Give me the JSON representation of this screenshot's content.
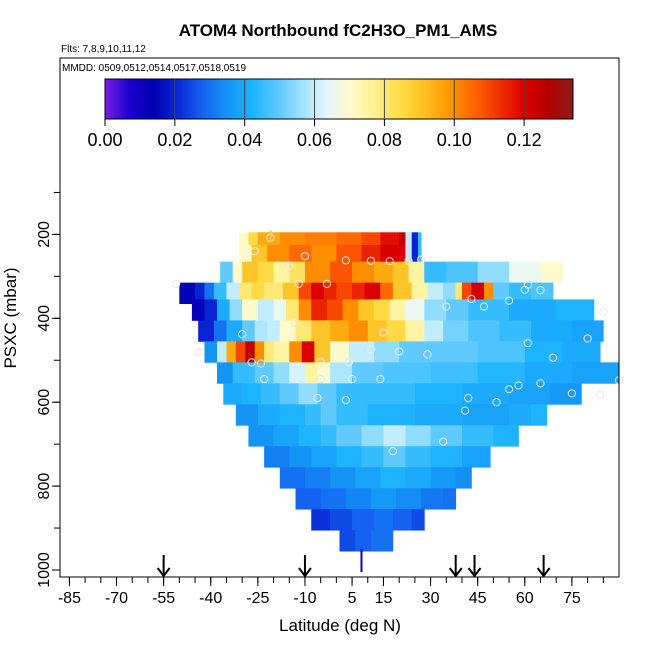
{
  "chart_data": {
    "type": "heatmap",
    "title": "ATOM4 Northbound fC2H3O_PM1_AMS",
    "flights_note": "Flts: 7,8,9,10,11,12",
    "dates_note": "MMDD: 0509,0512,0514,0517,0518,0519",
    "xlabel": "Latitude (deg N)",
    "ylabel": "PSXC (mbar)",
    "xlim": [
      -88,
      90
    ],
    "ylim": [
      1010,
      0
    ],
    "x_ticks": [
      "-85",
      "-70",
      "-55",
      "-40",
      "-25",
      "-10",
      "5",
      "15",
      "30",
      "45",
      "60",
      "75"
    ],
    "x_tick_values": [
      -85,
      -70,
      -55,
      -40,
      -25,
      -10,
      5,
      15,
      30,
      45,
      60,
      75
    ],
    "y_ticks": [
      "200",
      "400",
      "600",
      "800",
      "1000"
    ],
    "y_tick_values": [
      200,
      400,
      600,
      800,
      1000
    ],
    "colorbar": {
      "min": 0,
      "max": 0.134,
      "ticks": [
        "0.00",
        "0.02",
        "0.04",
        "0.06",
        "0.08",
        "0.10",
        "0.12"
      ],
      "tick_values": [
        0,
        0.02,
        0.04,
        0.06,
        0.08,
        0.1,
        0.12
      ],
      "colors": [
        "#7a1ee6",
        "#1a00d0",
        "#0000b0",
        "#0a2ad8",
        "#1464f0",
        "#1496f5",
        "#1eb4ff",
        "#5ac8ff",
        "#9ee2ff",
        "#e4f6ff",
        "#fffac8",
        "#fff08c",
        "#ffdc46",
        "#ffbe1e",
        "#ff9600",
        "#ff6400",
        "#f03200",
        "#dc0000",
        "#b40000",
        "#8c1c1c"
      ]
    },
    "rows": [
      {
        "p": 220,
        "lat0": -31,
        "lat1": 27,
        "segments": [
          [
            -31,
            0.07
          ],
          [
            -28,
            0.085
          ],
          [
            -25,
            0.095
          ],
          [
            -18,
            0.1
          ],
          [
            -10,
            0.102
          ],
          [
            0,
            0.105
          ],
          [
            8,
            0.11
          ],
          [
            14,
            0.118
          ],
          [
            20,
            0.125
          ],
          [
            22,
            0.06
          ],
          [
            24,
            0.02
          ],
          [
            26,
            0.045
          ]
        ]
      },
      {
        "p": 250,
        "lat0": -31,
        "lat1": 27,
        "segments": [
          [
            -31,
            0.07
          ],
          [
            -27,
            0.09
          ],
          [
            -22,
            0.1
          ],
          [
            -15,
            0.105
          ],
          [
            -8,
            0.1
          ],
          [
            0,
            0.108
          ],
          [
            8,
            0.115
          ],
          [
            14,
            0.12
          ],
          [
            20,
            0.12
          ],
          [
            22,
            0.06
          ],
          [
            24,
            0.02
          ],
          [
            26,
            0.045
          ]
        ]
      },
      {
        "p": 290,
        "lat0": -37,
        "lat1": 72,
        "segments": [
          [
            -37,
            0.05
          ],
          [
            -33,
            0.07
          ],
          [
            -30,
            0.09
          ],
          [
            -25,
            0.085
          ],
          [
            -20,
            0.075
          ],
          [
            -15,
            0.082
          ],
          [
            -10,
            0.1
          ],
          [
            -2,
            0.108
          ],
          [
            5,
            0.1
          ],
          [
            12,
            0.095
          ],
          [
            18,
            0.09
          ],
          [
            23,
            0.075
          ],
          [
            28,
            0.045
          ],
          [
            35,
            0.048
          ],
          [
            45,
            0.055
          ],
          [
            55,
            0.065
          ],
          [
            65,
            0.07
          ]
        ]
      },
      {
        "p": 340,
        "lat0": -50,
        "lat1": 69,
        "segments": [
          [
            -50,
            0.015
          ],
          [
            -45,
            0.02
          ],
          [
            -42,
            0.03
          ],
          [
            -39,
            0.045
          ],
          [
            -35,
            0.06
          ],
          [
            -31,
            0.08
          ],
          [
            -27,
            0.085
          ],
          [
            -23,
            0.08
          ],
          [
            -17,
            0.09
          ],
          [
            -12,
            0.11
          ],
          [
            -8,
            0.12
          ],
          [
            -4,
            0.115
          ],
          [
            0,
            0.11
          ],
          [
            5,
            0.115
          ],
          [
            9,
            0.12
          ],
          [
            14,
            0.105
          ],
          [
            18,
            0.09
          ],
          [
            24,
            0.075
          ],
          [
            29,
            0.06
          ],
          [
            34,
            0.055
          ],
          [
            38,
            0.08
          ],
          [
            40,
            0.11
          ],
          [
            43,
            0.122
          ],
          [
            47,
            0.1
          ],
          [
            50,
            0.05
          ],
          [
            55,
            0.045
          ],
          [
            62,
            0.048
          ]
        ]
      },
      {
        "p": 380,
        "lat0": -46,
        "lat1": 82,
        "segments": [
          [
            -46,
            0.012
          ],
          [
            -42,
            0.02
          ],
          [
            -38,
            0.04
          ],
          [
            -34,
            0.055
          ],
          [
            -30,
            0.07
          ],
          [
            -25,
            0.06
          ],
          [
            -20,
            0.065
          ],
          [
            -16,
            0.08
          ],
          [
            -12,
            0.1
          ],
          [
            -8,
            0.115
          ],
          [
            -3,
            0.11
          ],
          [
            2,
            0.1
          ],
          [
            7,
            0.09
          ],
          [
            12,
            0.085
          ],
          [
            17,
            0.075
          ],
          [
            22,
            0.065
          ],
          [
            28,
            0.055
          ],
          [
            35,
            0.05
          ],
          [
            42,
            0.045
          ],
          [
            55,
            0.04
          ],
          [
            70,
            0.042
          ]
        ]
      },
      {
        "p": 430,
        "lat0": -44,
        "lat1": 85,
        "segments": [
          [
            -44,
            0.02
          ],
          [
            -39,
            0.03
          ],
          [
            -35,
            0.04
          ],
          [
            -30,
            0.05
          ],
          [
            -26,
            0.058
          ],
          [
            -22,
            0.06
          ],
          [
            -18,
            0.07
          ],
          [
            -13,
            0.08
          ],
          [
            -8,
            0.09
          ],
          [
            -2,
            0.095
          ],
          [
            4,
            0.1
          ],
          [
            10,
            0.09
          ],
          [
            16,
            0.085
          ],
          [
            22,
            0.075
          ],
          [
            28,
            0.06
          ],
          [
            34,
            0.052
          ],
          [
            42,
            0.048
          ],
          [
            52,
            0.045
          ],
          [
            62,
            0.04
          ],
          [
            75,
            0.038
          ]
        ]
      },
      {
        "p": 480,
        "lat0": -42,
        "lat1": 84,
        "segments": [
          [
            -42,
            0.035
          ],
          [
            -38,
            0.06
          ],
          [
            -35,
            0.095
          ],
          [
            -32,
            0.11
          ],
          [
            -29,
            0.125
          ],
          [
            -26,
            0.1
          ],
          [
            -23,
            0.08
          ],
          [
            -20,
            0.075
          ],
          [
            -15,
            0.1
          ],
          [
            -11,
            0.12
          ],
          [
            -7,
            0.09
          ],
          [
            -2,
            0.07
          ],
          [
            4,
            0.06
          ],
          [
            12,
            0.055
          ],
          [
            20,
            0.05
          ],
          [
            30,
            0.05
          ],
          [
            45,
            0.048
          ],
          [
            60,
            0.042
          ],
          [
            72,
            0.04
          ]
        ]
      },
      {
        "p": 530,
        "lat0": -38,
        "lat1": 90,
        "segments": [
          [
            -38,
            0.035
          ],
          [
            -33,
            0.045
          ],
          [
            -26,
            0.05
          ],
          [
            -20,
            0.055
          ],
          [
            -15,
            0.062
          ],
          [
            -10,
            0.075
          ],
          [
            -6,
            0.07
          ],
          [
            -2,
            0.058
          ],
          [
            5,
            0.05
          ],
          [
            15,
            0.048
          ],
          [
            30,
            0.046
          ],
          [
            45,
            0.043
          ],
          [
            60,
            0.04
          ],
          [
            75,
            0.038
          ]
        ]
      },
      {
        "p": 580,
        "lat0": -36,
        "lat1": 78,
        "segments": [
          [
            -36,
            0.04
          ],
          [
            -30,
            0.042
          ],
          [
            -24,
            0.045
          ],
          [
            -18,
            0.05
          ],
          [
            -12,
            0.055
          ],
          [
            -6,
            0.05
          ],
          [
            0,
            0.045
          ],
          [
            10,
            0.045
          ],
          [
            25,
            0.042
          ],
          [
            40,
            0.04
          ],
          [
            55,
            0.038
          ],
          [
            68,
            0.036
          ]
        ]
      },
      {
        "p": 630,
        "lat0": -32,
        "lat1": 67,
        "segments": [
          [
            -32,
            0.035
          ],
          [
            -25,
            0.04
          ],
          [
            -18,
            0.042
          ],
          [
            -10,
            0.045
          ],
          [
            -5,
            0.05
          ],
          [
            0,
            0.045
          ],
          [
            10,
            0.042
          ],
          [
            25,
            0.04
          ],
          [
            40,
            0.038
          ],
          [
            55,
            0.04
          ],
          [
            62,
            0.042
          ]
        ]
      },
      {
        "p": 680,
        "lat0": -28,
        "lat1": 58,
        "segments": [
          [
            -28,
            0.035
          ],
          [
            -20,
            0.038
          ],
          [
            -12,
            0.042
          ],
          [
            -5,
            0.045
          ],
          [
            0,
            0.05
          ],
          [
            8,
            0.055
          ],
          [
            15,
            0.06
          ],
          [
            22,
            0.055
          ],
          [
            30,
            0.05
          ],
          [
            40,
            0.045
          ],
          [
            50,
            0.042
          ]
        ]
      },
      {
        "p": 730,
        "lat0": -23,
        "lat1": 49,
        "segments": [
          [
            -23,
            0.032
          ],
          [
            -15,
            0.035
          ],
          [
            -8,
            0.038
          ],
          [
            0,
            0.042
          ],
          [
            8,
            0.045
          ],
          [
            15,
            0.05
          ],
          [
            22,
            0.045
          ],
          [
            30,
            0.042
          ],
          [
            40,
            0.038
          ]
        ]
      },
      {
        "p": 780,
        "lat0": -18,
        "lat1": 43,
        "segments": [
          [
            -18,
            0.03
          ],
          [
            -10,
            0.032
          ],
          [
            -2,
            0.035
          ],
          [
            6,
            0.038
          ],
          [
            14,
            0.042
          ],
          [
            22,
            0.04
          ],
          [
            30,
            0.036
          ],
          [
            38,
            0.034
          ]
        ]
      },
      {
        "p": 830,
        "lat0": -13,
        "lat1": 38,
        "segments": [
          [
            -13,
            0.028
          ],
          [
            -5,
            0.03
          ],
          [
            3,
            0.033
          ],
          [
            11,
            0.036
          ],
          [
            19,
            0.034
          ],
          [
            27,
            0.031
          ],
          [
            34,
            0.03
          ]
        ]
      },
      {
        "p": 880,
        "lat0": -8,
        "lat1": 28,
        "segments": [
          [
            -8,
            0.022
          ],
          [
            -2,
            0.025
          ],
          [
            5,
            0.028
          ],
          [
            12,
            0.03
          ],
          [
            18,
            0.028
          ],
          [
            24,
            0.025
          ]
        ]
      },
      {
        "p": 930,
        "lat0": 1,
        "lat1": 18,
        "segments": [
          [
            1,
            0.025
          ],
          [
            6,
            0.028
          ],
          [
            11,
            0.03
          ],
          [
            15,
            0.03
          ]
        ]
      }
    ],
    "samples": [
      [
        -26,
        240
      ],
      [
        -15,
        275
      ],
      [
        -10,
        252
      ],
      [
        3,
        262
      ],
      [
        11,
        263
      ],
      [
        17,
        264
      ],
      [
        23,
        263
      ],
      [
        27,
        260
      ],
      [
        -51,
        318
      ],
      [
        -12,
        318
      ],
      [
        -3,
        318
      ],
      [
        43,
        354
      ],
      [
        55,
        358
      ],
      [
        60,
        332
      ],
      [
        61,
        320
      ],
      [
        65,
        333
      ],
      [
        35,
        372
      ],
      [
        47,
        372
      ],
      [
        85,
        385
      ],
      [
        -13,
        411
      ],
      [
        15,
        434
      ],
      [
        -30,
        438
      ],
      [
        80,
        448
      ],
      [
        61,
        459
      ],
      [
        -44,
        481
      ],
      [
        -27,
        505
      ],
      [
        -24,
        508
      ],
      [
        -5,
        504
      ],
      [
        4,
        504
      ],
      [
        11,
        474
      ],
      [
        20,
        479
      ],
      [
        29,
        486
      ],
      [
        69,
        494
      ],
      [
        -23,
        545
      ],
      [
        -5,
        545
      ],
      [
        5,
        545
      ],
      [
        14,
        545
      ],
      [
        58,
        560
      ],
      [
        -6,
        590
      ],
      [
        3,
        595
      ],
      [
        42,
        590
      ],
      [
        51,
        600
      ],
      [
        55,
        569
      ],
      [
        65,
        555
      ],
      [
        75,
        579
      ],
      [
        84,
        583
      ],
      [
        90,
        548
      ],
      [
        41,
        620
      ],
      [
        34,
        694
      ],
      [
        18,
        717
      ],
      [
        -21,
        208
      ]
    ],
    "arrows": [
      -55,
      -10,
      38,
      44,
      66
    ],
    "marks": [
      {
        "lat": -21,
        "p0": 190,
        "p1": 213,
        "value": 0.09
      },
      {
        "lat": 8,
        "p0": 950,
        "p1": 1005,
        "value": 0.01
      }
    ]
  }
}
